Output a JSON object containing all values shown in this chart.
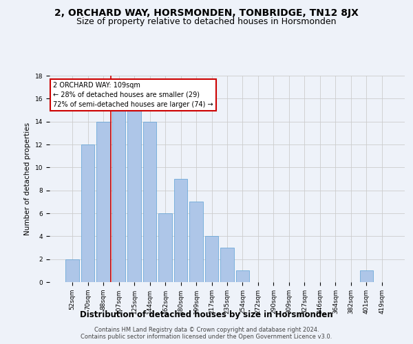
{
  "title": "2, ORCHARD WAY, HORSMONDEN, TONBRIDGE, TN12 8JX",
  "subtitle": "Size of property relative to detached houses in Horsmonden",
  "xlabel": "Distribution of detached houses by size in Horsmonden",
  "ylabel": "Number of detached properties",
  "categories": [
    "52sqm",
    "70sqm",
    "88sqm",
    "107sqm",
    "125sqm",
    "144sqm",
    "162sqm",
    "180sqm",
    "199sqm",
    "217sqm",
    "235sqm",
    "254sqm",
    "272sqm",
    "290sqm",
    "309sqm",
    "327sqm",
    "346sqm",
    "364sqm",
    "382sqm",
    "401sqm",
    "419sqm"
  ],
  "values": [
    2,
    12,
    14,
    15,
    15,
    14,
    6,
    9,
    7,
    4,
    3,
    1,
    0,
    0,
    0,
    0,
    0,
    0,
    0,
    1,
    0
  ],
  "bar_color": "#aec6e8",
  "bar_edge_color": "#5a9fd4",
  "red_line_index": 2.5,
  "annotation_text": "2 ORCHARD WAY: 109sqm\n← 28% of detached houses are smaller (29)\n72% of semi-detached houses are larger (74) →",
  "annotation_box_color": "#ffffff",
  "annotation_box_edge_color": "#cc0000",
  "footer_text": "Contains HM Land Registry data © Crown copyright and database right 2024.\nContains public sector information licensed under the Open Government Licence v3.0.",
  "ylim": [
    0,
    18
  ],
  "yticks": [
    0,
    2,
    4,
    6,
    8,
    10,
    12,
    14,
    16,
    18
  ],
  "grid_color": "#cccccc",
  "background_color": "#eef2f9",
  "title_fontsize": 10,
  "subtitle_fontsize": 9,
  "xlabel_fontsize": 8.5,
  "ylabel_fontsize": 7.5,
  "tick_fontsize": 6.5,
  "bar_width": 0.85,
  "footer_fontsize": 6
}
